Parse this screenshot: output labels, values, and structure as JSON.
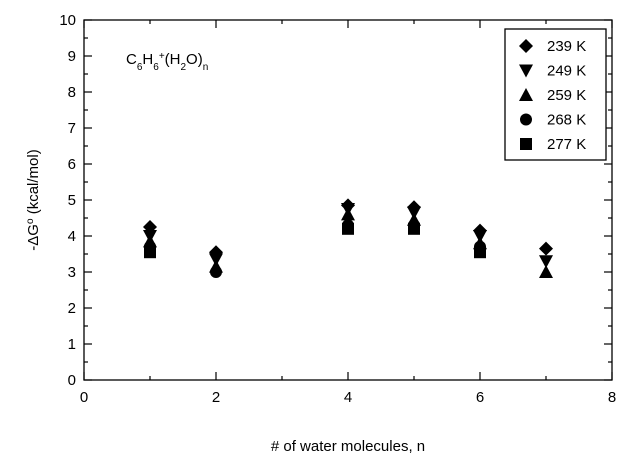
{
  "chart_data": {
    "type": "scatter",
    "title": "",
    "annotation": {
      "parts": [
        {
          "t": "C",
          "s": "n"
        },
        {
          "t": "6",
          "s": "sub"
        },
        {
          "t": "H",
          "s": "n"
        },
        {
          "t": "6",
          "s": "sub"
        },
        {
          "t": "+",
          "s": "sup"
        },
        {
          "t": "(H",
          "s": "n"
        },
        {
          "t": "2",
          "s": "sub"
        },
        {
          "t": "O)",
          "s": "n"
        },
        {
          "t": "n",
          "s": "sub"
        }
      ]
    },
    "xlabel": "# of water molecules, n",
    "ylabel_parts": [
      {
        "t": "-ΔG",
        "s": "n"
      },
      {
        "t": "o",
        "s": "sup"
      },
      {
        "t": " (kcal/mol)",
        "s": "n"
      }
    ],
    "xlim": [
      0,
      8
    ],
    "ylim": [
      0,
      10
    ],
    "xticks": [
      "0",
      "2",
      "4",
      "6",
      "8"
    ],
    "yticks": [
      "0",
      "1",
      "2",
      "3",
      "4",
      "5",
      "6",
      "7",
      "8",
      "9",
      "10"
    ],
    "grid": false,
    "legend_position": "top-right",
    "series": [
      {
        "name": "239 K",
        "marker": "diamond",
        "x": [
          1,
          2,
          4,
          5,
          6,
          7
        ],
        "y": [
          4.25,
          3.55,
          4.85,
          4.8,
          4.15,
          3.65
        ]
      },
      {
        "name": "249 K",
        "marker": "triangle-down",
        "x": [
          1,
          2,
          4,
          5,
          6,
          7
        ],
        "y": [
          4.0,
          3.35,
          4.75,
          4.65,
          4.0,
          3.3
        ]
      },
      {
        "name": "259 K",
        "marker": "triangle-up",
        "x": [
          1,
          2,
          4,
          5,
          6,
          7
        ],
        "y": [
          3.85,
          3.15,
          4.6,
          4.45,
          3.8,
          3.0
        ]
      },
      {
        "name": "268 K",
        "marker": "circle",
        "x": [
          1,
          2,
          4,
          5,
          6
        ],
        "y": [
          3.7,
          3.0,
          4.3,
          4.3,
          3.7
        ]
      },
      {
        "name": "277 K",
        "marker": "square",
        "x": [
          1,
          4,
          5,
          6
        ],
        "y": [
          3.55,
          4.2,
          4.2,
          3.55
        ]
      }
    ]
  }
}
